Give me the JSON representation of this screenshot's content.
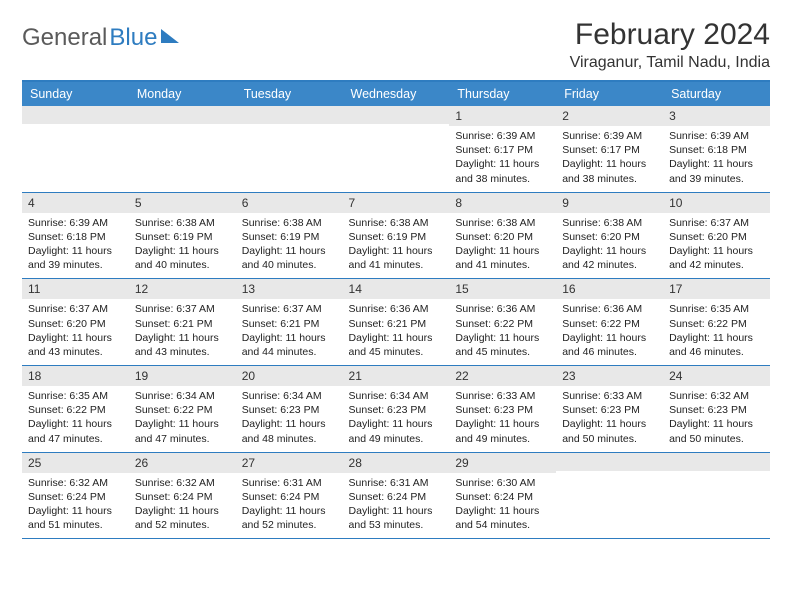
{
  "logo": {
    "text1": "General",
    "text2": "Blue"
  },
  "title": "February 2024",
  "location": "Viraganur, Tamil Nadu, India",
  "colors": {
    "header_bg": "#3b87c8",
    "header_text": "#ffffff",
    "divider": "#2e7cc0",
    "daynum_bg": "#e8e8e8",
    "body_text": "#222222",
    "page_bg": "#ffffff",
    "logo_gray": "#5a5a5a",
    "logo_blue": "#2e7cc0"
  },
  "fonts": {
    "title_size_pt": 22,
    "location_size_pt": 12,
    "header_size_pt": 9.5,
    "daynum_size_pt": 9,
    "body_size_pt": 8
  },
  "columns": [
    "Sunday",
    "Monday",
    "Tuesday",
    "Wednesday",
    "Thursday",
    "Friday",
    "Saturday"
  ],
  "weeks": [
    [
      {
        "n": "",
        "sr": "",
        "ss": "",
        "dl": ""
      },
      {
        "n": "",
        "sr": "",
        "ss": "",
        "dl": ""
      },
      {
        "n": "",
        "sr": "",
        "ss": "",
        "dl": ""
      },
      {
        "n": "",
        "sr": "",
        "ss": "",
        "dl": ""
      },
      {
        "n": "1",
        "sr": "Sunrise: 6:39 AM",
        "ss": "Sunset: 6:17 PM",
        "dl": "Daylight: 11 hours and 38 minutes."
      },
      {
        "n": "2",
        "sr": "Sunrise: 6:39 AM",
        "ss": "Sunset: 6:17 PM",
        "dl": "Daylight: 11 hours and 38 minutes."
      },
      {
        "n": "3",
        "sr": "Sunrise: 6:39 AM",
        "ss": "Sunset: 6:18 PM",
        "dl": "Daylight: 11 hours and 39 minutes."
      }
    ],
    [
      {
        "n": "4",
        "sr": "Sunrise: 6:39 AM",
        "ss": "Sunset: 6:18 PM",
        "dl": "Daylight: 11 hours and 39 minutes."
      },
      {
        "n": "5",
        "sr": "Sunrise: 6:38 AM",
        "ss": "Sunset: 6:19 PM",
        "dl": "Daylight: 11 hours and 40 minutes."
      },
      {
        "n": "6",
        "sr": "Sunrise: 6:38 AM",
        "ss": "Sunset: 6:19 PM",
        "dl": "Daylight: 11 hours and 40 minutes."
      },
      {
        "n": "7",
        "sr": "Sunrise: 6:38 AM",
        "ss": "Sunset: 6:19 PM",
        "dl": "Daylight: 11 hours and 41 minutes."
      },
      {
        "n": "8",
        "sr": "Sunrise: 6:38 AM",
        "ss": "Sunset: 6:20 PM",
        "dl": "Daylight: 11 hours and 41 minutes."
      },
      {
        "n": "9",
        "sr": "Sunrise: 6:38 AM",
        "ss": "Sunset: 6:20 PM",
        "dl": "Daylight: 11 hours and 42 minutes."
      },
      {
        "n": "10",
        "sr": "Sunrise: 6:37 AM",
        "ss": "Sunset: 6:20 PM",
        "dl": "Daylight: 11 hours and 42 minutes."
      }
    ],
    [
      {
        "n": "11",
        "sr": "Sunrise: 6:37 AM",
        "ss": "Sunset: 6:20 PM",
        "dl": "Daylight: 11 hours and 43 minutes."
      },
      {
        "n": "12",
        "sr": "Sunrise: 6:37 AM",
        "ss": "Sunset: 6:21 PM",
        "dl": "Daylight: 11 hours and 43 minutes."
      },
      {
        "n": "13",
        "sr": "Sunrise: 6:37 AM",
        "ss": "Sunset: 6:21 PM",
        "dl": "Daylight: 11 hours and 44 minutes."
      },
      {
        "n": "14",
        "sr": "Sunrise: 6:36 AM",
        "ss": "Sunset: 6:21 PM",
        "dl": "Daylight: 11 hours and 45 minutes."
      },
      {
        "n": "15",
        "sr": "Sunrise: 6:36 AM",
        "ss": "Sunset: 6:22 PM",
        "dl": "Daylight: 11 hours and 45 minutes."
      },
      {
        "n": "16",
        "sr": "Sunrise: 6:36 AM",
        "ss": "Sunset: 6:22 PM",
        "dl": "Daylight: 11 hours and 46 minutes."
      },
      {
        "n": "17",
        "sr": "Sunrise: 6:35 AM",
        "ss": "Sunset: 6:22 PM",
        "dl": "Daylight: 11 hours and 46 minutes."
      }
    ],
    [
      {
        "n": "18",
        "sr": "Sunrise: 6:35 AM",
        "ss": "Sunset: 6:22 PM",
        "dl": "Daylight: 11 hours and 47 minutes."
      },
      {
        "n": "19",
        "sr": "Sunrise: 6:34 AM",
        "ss": "Sunset: 6:22 PM",
        "dl": "Daylight: 11 hours and 47 minutes."
      },
      {
        "n": "20",
        "sr": "Sunrise: 6:34 AM",
        "ss": "Sunset: 6:23 PM",
        "dl": "Daylight: 11 hours and 48 minutes."
      },
      {
        "n": "21",
        "sr": "Sunrise: 6:34 AM",
        "ss": "Sunset: 6:23 PM",
        "dl": "Daylight: 11 hours and 49 minutes."
      },
      {
        "n": "22",
        "sr": "Sunrise: 6:33 AM",
        "ss": "Sunset: 6:23 PM",
        "dl": "Daylight: 11 hours and 49 minutes."
      },
      {
        "n": "23",
        "sr": "Sunrise: 6:33 AM",
        "ss": "Sunset: 6:23 PM",
        "dl": "Daylight: 11 hours and 50 minutes."
      },
      {
        "n": "24",
        "sr": "Sunrise: 6:32 AM",
        "ss": "Sunset: 6:23 PM",
        "dl": "Daylight: 11 hours and 50 minutes."
      }
    ],
    [
      {
        "n": "25",
        "sr": "Sunrise: 6:32 AM",
        "ss": "Sunset: 6:24 PM",
        "dl": "Daylight: 11 hours and 51 minutes."
      },
      {
        "n": "26",
        "sr": "Sunrise: 6:32 AM",
        "ss": "Sunset: 6:24 PM",
        "dl": "Daylight: 11 hours and 52 minutes."
      },
      {
        "n": "27",
        "sr": "Sunrise: 6:31 AM",
        "ss": "Sunset: 6:24 PM",
        "dl": "Daylight: 11 hours and 52 minutes."
      },
      {
        "n": "28",
        "sr": "Sunrise: 6:31 AM",
        "ss": "Sunset: 6:24 PM",
        "dl": "Daylight: 11 hours and 53 minutes."
      },
      {
        "n": "29",
        "sr": "Sunrise: 6:30 AM",
        "ss": "Sunset: 6:24 PM",
        "dl": "Daylight: 11 hours and 54 minutes."
      },
      {
        "n": "",
        "sr": "",
        "ss": "",
        "dl": ""
      },
      {
        "n": "",
        "sr": "",
        "ss": "",
        "dl": ""
      }
    ]
  ]
}
